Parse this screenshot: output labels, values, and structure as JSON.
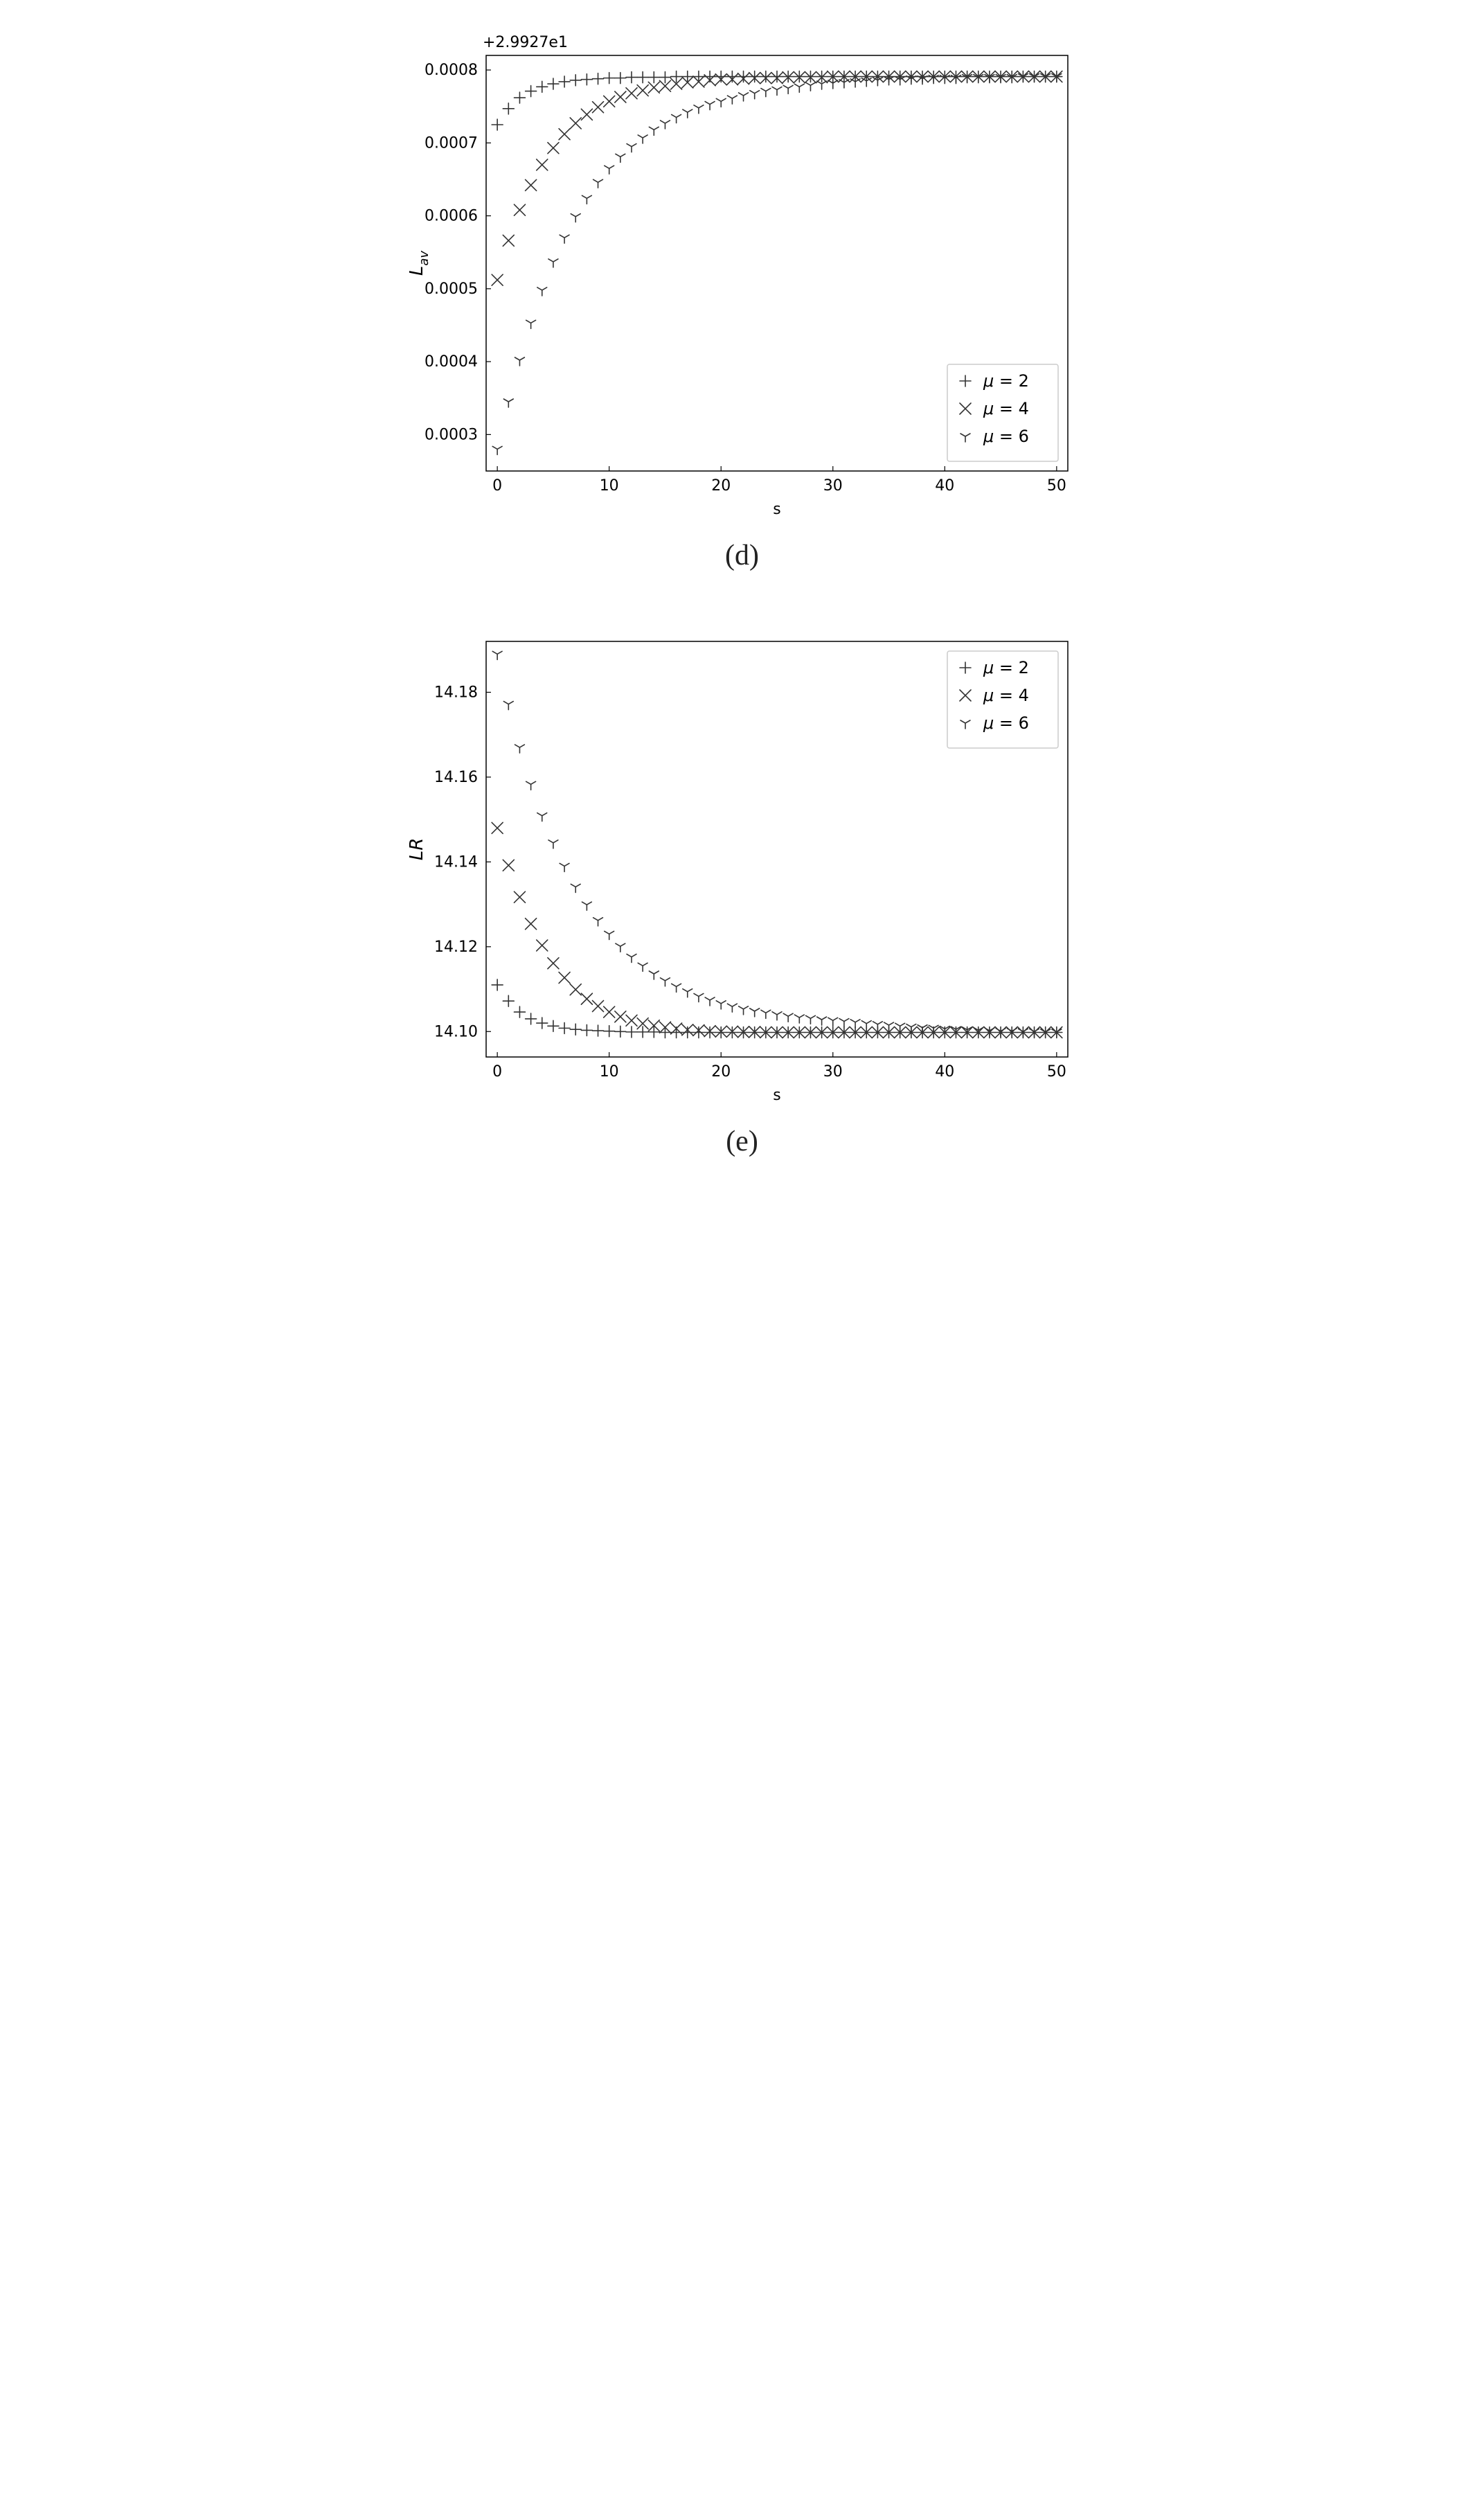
{
  "chart_d": {
    "type": "scatter",
    "panel_label": "(d)",
    "offset_text": "+2.9927e1",
    "xlabel": "s",
    "ylabel": "Lₐᵥ",
    "ylabel_html": "L<tspan font-style='italic' baseline-shift='-6' font-size='18'>av</tspan>",
    "xlim": [
      -1,
      51
    ],
    "ylim": [
      0.00025,
      0.00082
    ],
    "xticks": [
      0,
      10,
      20,
      30,
      40,
      50
    ],
    "yticks": [
      0.0003,
      0.0004,
      0.0005,
      0.0006,
      0.0007,
      0.0008
    ],
    "ytick_labels": [
      "0.0003",
      "0.0004",
      "0.0005",
      "0.0006",
      "0.0007",
      "0.0008"
    ],
    "grid": false,
    "background_color": "#ffffff",
    "axis_color": "#000000",
    "tick_fontsize": 22,
    "label_fontsize": 26,
    "marker_size": 16,
    "marker_stroke": "#333333",
    "marker_stroke_width": 1.6,
    "legend": {
      "position": "lower-right",
      "items": [
        {
          "marker": "plus",
          "label": "μ = 2"
        },
        {
          "marker": "x",
          "label": "μ = 4"
        },
        {
          "marker": "tri_down",
          "label": "μ = 6"
        }
      ]
    },
    "series": [
      {
        "name": "mu2",
        "marker": "plus",
        "x": [
          0,
          1,
          2,
          3,
          4,
          5,
          6,
          7,
          8,
          9,
          10,
          11,
          12,
          13,
          14,
          15,
          16,
          17,
          18,
          19,
          20,
          21,
          22,
          23,
          24,
          25,
          26,
          27,
          28,
          29,
          30,
          31,
          32,
          33,
          34,
          35,
          36,
          37,
          38,
          39,
          40,
          41,
          42,
          43,
          44,
          45,
          46,
          47,
          48,
          49,
          50
        ],
        "y": [
          0.000725,
          0.000747,
          0.000762,
          0.000771,
          0.000777,
          0.000781,
          0.000784,
          0.000786,
          0.000787,
          0.000788,
          0.000789,
          0.000789,
          0.00079,
          0.00079,
          0.00079,
          0.00079,
          0.000791,
          0.000791,
          0.000791,
          0.000791,
          0.000791,
          0.000791,
          0.000791,
          0.000791,
          0.000791,
          0.000791,
          0.000791,
          0.000791,
          0.000791,
          0.000791,
          0.000791,
          0.000791,
          0.000791,
          0.000791,
          0.000791,
          0.000791,
          0.000791,
          0.000791,
          0.000791,
          0.000791,
          0.000791,
          0.000791,
          0.000791,
          0.000791,
          0.000791,
          0.000791,
          0.000791,
          0.000791,
          0.000791,
          0.000791,
          0.000791
        ]
      },
      {
        "name": "mu4",
        "marker": "x",
        "x": [
          0,
          1,
          2,
          3,
          4,
          5,
          6,
          7,
          8,
          9,
          10,
          11,
          12,
          13,
          14,
          15,
          16,
          17,
          18,
          19,
          20,
          21,
          22,
          23,
          24,
          25,
          26,
          27,
          28,
          29,
          30,
          31,
          32,
          33,
          34,
          35,
          36,
          37,
          38,
          39,
          40,
          41,
          42,
          43,
          44,
          45,
          46,
          47,
          48,
          49,
          50
        ],
        "y": [
          0.000512,
          0.000566,
          0.000608,
          0.000642,
          0.00067,
          0.000693,
          0.000712,
          0.000727,
          0.000739,
          0.000749,
          0.000757,
          0.000763,
          0.000768,
          0.000772,
          0.000776,
          0.000778,
          0.000781,
          0.000783,
          0.000784,
          0.000786,
          0.000787,
          0.000787,
          0.000788,
          0.000789,
          0.000789,
          0.000789,
          0.00079,
          0.00079,
          0.00079,
          0.00079,
          0.000791,
          0.000791,
          0.000791,
          0.000791,
          0.000791,
          0.000791,
          0.000791,
          0.000791,
          0.000791,
          0.000791,
          0.000791,
          0.000791,
          0.000791,
          0.000791,
          0.000791,
          0.000791,
          0.000791,
          0.000791,
          0.000791,
          0.000791,
          0.000791
        ]
      },
      {
        "name": "mu6",
        "marker": "tri_down",
        "x": [
          0,
          1,
          2,
          3,
          4,
          5,
          6,
          7,
          8,
          9,
          10,
          11,
          12,
          13,
          14,
          15,
          16,
          17,
          18,
          19,
          20,
          21,
          22,
          23,
          24,
          25,
          26,
          27,
          28,
          29,
          30,
          31,
          32,
          33,
          34,
          35,
          36,
          37,
          38,
          39,
          40,
          41,
          42,
          43,
          44,
          45,
          46,
          47,
          48,
          49,
          50
        ],
        "y": [
          0.00028,
          0.000345,
          0.000402,
          0.000453,
          0.000498,
          0.000537,
          0.00057,
          0.000599,
          0.000624,
          0.000646,
          0.000665,
          0.000681,
          0.000695,
          0.000707,
          0.000718,
          0.000727,
          0.000735,
          0.000742,
          0.000748,
          0.000753,
          0.000757,
          0.000761,
          0.000765,
          0.000768,
          0.000771,
          0.000773,
          0.000775,
          0.000777,
          0.000779,
          0.000781,
          0.000782,
          0.000783,
          0.000784,
          0.000785,
          0.000786,
          0.000787,
          0.000787,
          0.000788,
          0.000788,
          0.000789,
          0.000789,
          0.000789,
          0.00079,
          0.00079,
          0.00079,
          0.00079,
          0.00079,
          0.000791,
          0.000791,
          0.000791,
          0.000791
        ]
      }
    ]
  },
  "chart_e": {
    "type": "scatter",
    "panel_label": "(e)",
    "xlabel": "s",
    "ylabel": "LR",
    "xlim": [
      -1,
      51
    ],
    "ylim": [
      14.094,
      14.192
    ],
    "xticks": [
      0,
      10,
      20,
      30,
      40,
      50
    ],
    "yticks": [
      14.1,
      14.12,
      14.14,
      14.16,
      14.18
    ],
    "ytick_labels": [
      "14.10",
      "14.12",
      "14.14",
      "14.16",
      "14.18"
    ],
    "grid": false,
    "background_color": "#ffffff",
    "axis_color": "#000000",
    "tick_fontsize": 22,
    "label_fontsize": 26,
    "marker_size": 16,
    "marker_stroke": "#333333",
    "marker_stroke_width": 1.6,
    "legend": {
      "position": "upper-right",
      "items": [
        {
          "marker": "plus",
          "label": "μ = 2"
        },
        {
          "marker": "x",
          "label": "μ = 4"
        },
        {
          "marker": "tri_down",
          "label": "μ = 6"
        }
      ]
    },
    "series": [
      {
        "name": "mu2",
        "marker": "plus",
        "x": [
          0,
          1,
          2,
          3,
          4,
          5,
          6,
          7,
          8,
          9,
          10,
          11,
          12,
          13,
          14,
          15,
          16,
          17,
          18,
          19,
          20,
          21,
          22,
          23,
          24,
          25,
          26,
          27,
          28,
          29,
          30,
          31,
          32,
          33,
          34,
          35,
          36,
          37,
          38,
          39,
          40,
          41,
          42,
          43,
          44,
          45,
          46,
          47,
          48,
          49,
          50
        ],
        "y": [
          14.111,
          14.1072,
          14.1046,
          14.103,
          14.102,
          14.1013,
          14.1008,
          14.1005,
          14.1003,
          14.1002,
          14.1001,
          14.1,
          14.0999,
          14.0999,
          14.0999,
          14.0998,
          14.0998,
          14.0998,
          14.0998,
          14.0998,
          14.0998,
          14.0998,
          14.0998,
          14.0998,
          14.0998,
          14.0998,
          14.0998,
          14.0998,
          14.0998,
          14.0998,
          14.0998,
          14.0998,
          14.0998,
          14.0998,
          14.0998,
          14.0998,
          14.0998,
          14.0998,
          14.0998,
          14.0998,
          14.0998,
          14.0998,
          14.0998,
          14.0998,
          14.0998,
          14.0998,
          14.0998,
          14.0998,
          14.0998,
          14.0998,
          14.0998
        ]
      },
      {
        "name": "mu4",
        "marker": "x",
        "x": [
          0,
          1,
          2,
          3,
          4,
          5,
          6,
          7,
          8,
          9,
          10,
          11,
          12,
          13,
          14,
          15,
          16,
          17,
          18,
          19,
          20,
          21,
          22,
          23,
          24,
          25,
          26,
          27,
          28,
          29,
          30,
          31,
          32,
          33,
          34,
          35,
          36,
          37,
          38,
          39,
          40,
          41,
          42,
          43,
          44,
          45,
          46,
          47,
          48,
          49,
          50
        ],
        "y": [
          14.148,
          14.1392,
          14.1317,
          14.1254,
          14.1203,
          14.1161,
          14.1127,
          14.1099,
          14.1077,
          14.106,
          14.1046,
          14.1035,
          14.1026,
          14.1019,
          14.1014,
          14.101,
          14.1007,
          14.1004,
          14.1003,
          14.1001,
          14.1,
          14.1,
          14.0999,
          14.0999,
          14.0998,
          14.0998,
          14.0998,
          14.0998,
          14.0998,
          14.0998,
          14.0998,
          14.0998,
          14.0998,
          14.0998,
          14.0998,
          14.0998,
          14.0998,
          14.0998,
          14.0998,
          14.0998,
          14.0998,
          14.0998,
          14.0998,
          14.0998,
          14.0998,
          14.0998,
          14.0998,
          14.0998,
          14.0998,
          14.0998,
          14.0998
        ]
      },
      {
        "name": "mu6",
        "marker": "tri_down",
        "x": [
          0,
          1,
          2,
          3,
          4,
          5,
          6,
          7,
          8,
          9,
          10,
          11,
          12,
          13,
          14,
          15,
          16,
          17,
          18,
          19,
          20,
          21,
          22,
          23,
          24,
          25,
          26,
          27,
          28,
          29,
          30,
          31,
          32,
          33,
          34,
          35,
          36,
          37,
          38,
          39,
          40,
          41,
          42,
          43,
          44,
          45,
          46,
          47,
          48,
          49,
          50
        ],
        "y": [
          14.189,
          14.1772,
          14.167,
          14.1583,
          14.1509,
          14.1445,
          14.139,
          14.1341,
          14.1299,
          14.1262,
          14.123,
          14.1201,
          14.1176,
          14.1155,
          14.1136,
          14.112,
          14.1106,
          14.1094,
          14.1083,
          14.1074,
          14.1066,
          14.1059,
          14.1053,
          14.1048,
          14.1044,
          14.104,
          14.1036,
          14.1033,
          14.1031,
          14.1028,
          14.1026,
          14.1024,
          14.1022,
          14.1019,
          14.1017,
          14.1015,
          14.1013,
          14.1011,
          14.1009,
          14.1008,
          14.1006,
          14.1005,
          14.1004,
          14.1003,
          14.1002,
          14.1001,
          14.1001,
          14.1,
          14.1,
          14.0999,
          14.0999
        ]
      }
    ]
  }
}
